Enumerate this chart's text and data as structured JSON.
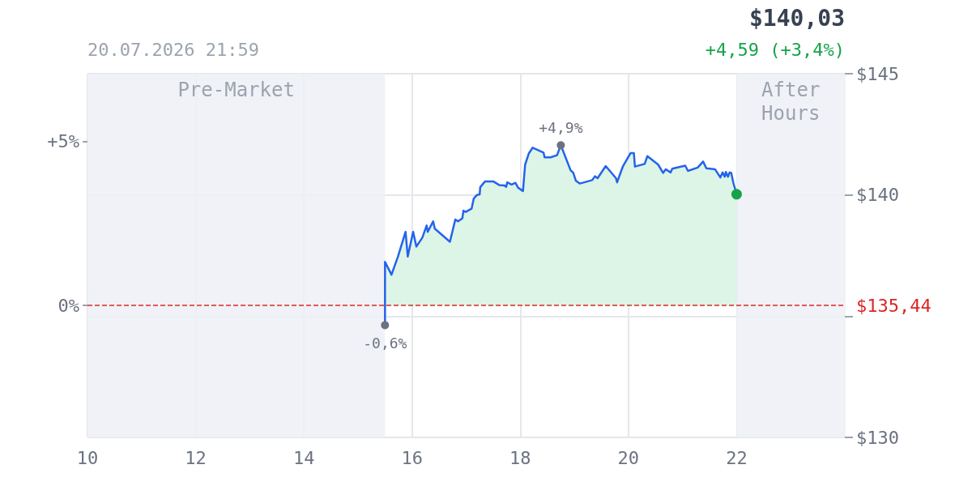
{
  "chart_data": {
    "type": "area",
    "subtitle": "20.07.2026 21:59",
    "x": [
      15.5,
      15.5,
      15.62,
      15.74,
      15.88,
      15.92,
      16.02,
      16.08,
      16.19,
      16.27,
      16.29,
      16.39,
      16.42,
      16.7,
      16.8,
      16.85,
      16.93,
      16.95,
      16.99,
      17.1,
      17.14,
      17.2,
      17.25,
      17.26,
      17.35,
      17.5,
      17.61,
      17.71,
      17.74,
      17.76,
      17.84,
      17.91,
      17.96,
      18.05,
      18.09,
      18.16,
      18.23,
      18.43,
      18.45,
      18.56,
      18.68,
      18.75,
      18.93,
      18.98,
      19.03,
      19.1,
      19.33,
      19.38,
      19.43,
      19.58,
      19.77,
      19.79,
      19.85,
      19.9,
      20.04,
      20.1,
      20.12,
      20.3,
      20.35,
      20.55,
      20.64,
      20.69,
      20.78,
      20.81,
      21.05,
      21.1,
      21.28,
      21.38,
      21.44,
      21.6,
      21.7,
      21.74,
      21.78,
      21.8,
      21.84,
      21.87,
      21.9,
      21.94,
      22.0
    ],
    "series": [
      {
        "color": "#2563eb",
        "values": [
          134.63,
          137.24,
          136.71,
          137.46,
          138.48,
          137.46,
          138.48,
          137.87,
          138.24,
          138.74,
          138.48,
          138.91,
          138.61,
          138.07,
          138.99,
          138.91,
          139.04,
          139.35,
          139.3,
          139.43,
          139.85,
          140.0,
          140.02,
          140.32,
          140.56,
          140.56,
          140.41,
          140.39,
          140.33,
          140.52,
          140.43,
          140.5,
          140.3,
          140.16,
          141.25,
          141.72,
          141.95,
          141.75,
          141.55,
          141.55,
          141.64,
          142.05,
          141.02,
          140.91,
          140.58,
          140.47,
          140.61,
          140.77,
          140.69,
          141.19,
          140.69,
          140.52,
          140.89,
          141.19,
          141.73,
          141.73,
          141.17,
          141.28,
          141.6,
          141.25,
          140.91,
          141.06,
          140.93,
          141.08,
          141.21,
          140.99,
          141.13,
          141.38,
          141.1,
          141.06,
          140.72,
          140.93,
          140.75,
          140.95,
          140.75,
          140.93,
          140.91,
          140.49,
          140.03
        ]
      }
    ],
    "xlim": [
      10,
      24
    ],
    "xticks": [
      10,
      12,
      14,
      16,
      18,
      20,
      22
    ],
    "ylim": [
      130,
      145
    ],
    "yticks": [
      {
        "value": 130,
        "label": "$130"
      },
      {
        "value": 135,
        "label": null
      },
      {
        "value": 140,
        "label": "$140"
      },
      {
        "value": 145,
        "label": "$145"
      }
    ],
    "y2lim": [
      -4.02,
      7.06
    ],
    "y2ticks": [
      {
        "value": 0,
        "label": "0%"
      },
      {
        "value": 5,
        "label": "+5%"
      }
    ],
    "ref_lines": [
      {
        "axis": "y",
        "value": 135.44,
        "label": "$135,44",
        "color": "#dc2626",
        "line_style": "dashed"
      }
    ],
    "bands": [
      {
        "axis": "x",
        "from": 10,
        "to": 15.5,
        "label": "Pre-Market",
        "color": "#edf0f6"
      },
      {
        "axis": "x",
        "from": 22,
        "to": 24,
        "label": "After\nHours",
        "color": "#edf0f6"
      }
    ],
    "annotations": [
      "$140,03",
      "+4,59 (+3,4%)",
      {
        "text": "+4,9%",
        "x": 18.75,
        "y": 142.05
      },
      {
        "text": "-0,6%",
        "x": 15.5,
        "y": 134.63
      }
    ],
    "grid": true,
    "marker": "none",
    "line_style": "solid"
  }
}
